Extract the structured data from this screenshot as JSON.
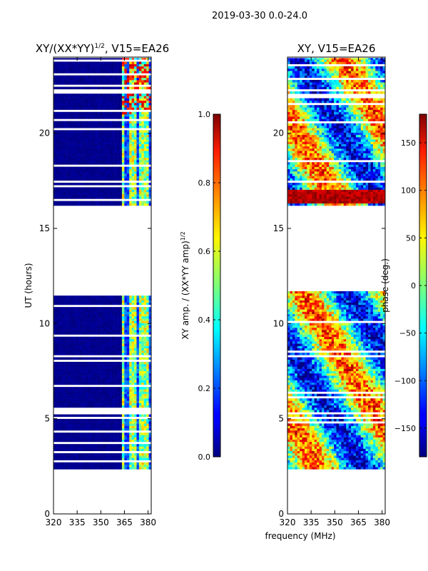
{
  "figure": {
    "suptitle": "2019-03-30 0.0-24.0",
    "shared_xlabel": "frequency (MHz)"
  },
  "chart_data": [
    {
      "type": "heatmap",
      "title_main": "XY/(XX*YY)",
      "title_exp": "1/2",
      "title_suffix": ", V15=EA26",
      "xlabel": "frequency (MHz)",
      "ylabel": "UT (hours)",
      "xlim": [
        320,
        382
      ],
      "ylim": [
        0,
        24
      ],
      "xticks": [
        320,
        335,
        350,
        365,
        380
      ],
      "yticks": [
        0,
        5,
        10,
        15,
        20
      ],
      "data_time_ranges": [
        [
          2.35,
          11.7
        ],
        [
          16.2,
          23.95
        ]
      ],
      "rfi_channel_band_mhz": [
        363,
        382
      ],
      "colorbar": {
        "label_main": "XY amp. / (XX*YY amp)",
        "label_exp": "1/2",
        "range": [
          0.0,
          1.0
        ],
        "ticks": [
          "0.0",
          "0.2",
          "0.4",
          "0.6",
          "0.8",
          "1.0"
        ],
        "colormap": "jet"
      }
    },
    {
      "type": "heatmap",
      "title_main": "XY, V15=EA26",
      "xlabel": "frequency (MHz)",
      "ylabel": "",
      "xlim": [
        320,
        382
      ],
      "ylim": [
        0,
        24
      ],
      "xticks": [
        320,
        335,
        350,
        365,
        380
      ],
      "yticks": [
        0,
        5,
        10,
        15,
        20
      ],
      "data_time_ranges": [
        [
          2.35,
          11.7
        ],
        [
          16.2,
          23.95
        ]
      ],
      "colorbar": {
        "label": "phase (deg.)",
        "range": [
          -180,
          180
        ],
        "ticks": [
          "−150",
          "−100",
          "−50",
          "0",
          "50",
          "100",
          "150"
        ],
        "tick_values": [
          -150,
          -100,
          -50,
          0,
          50,
          100,
          150
        ],
        "colormap": "jet"
      }
    }
  ]
}
